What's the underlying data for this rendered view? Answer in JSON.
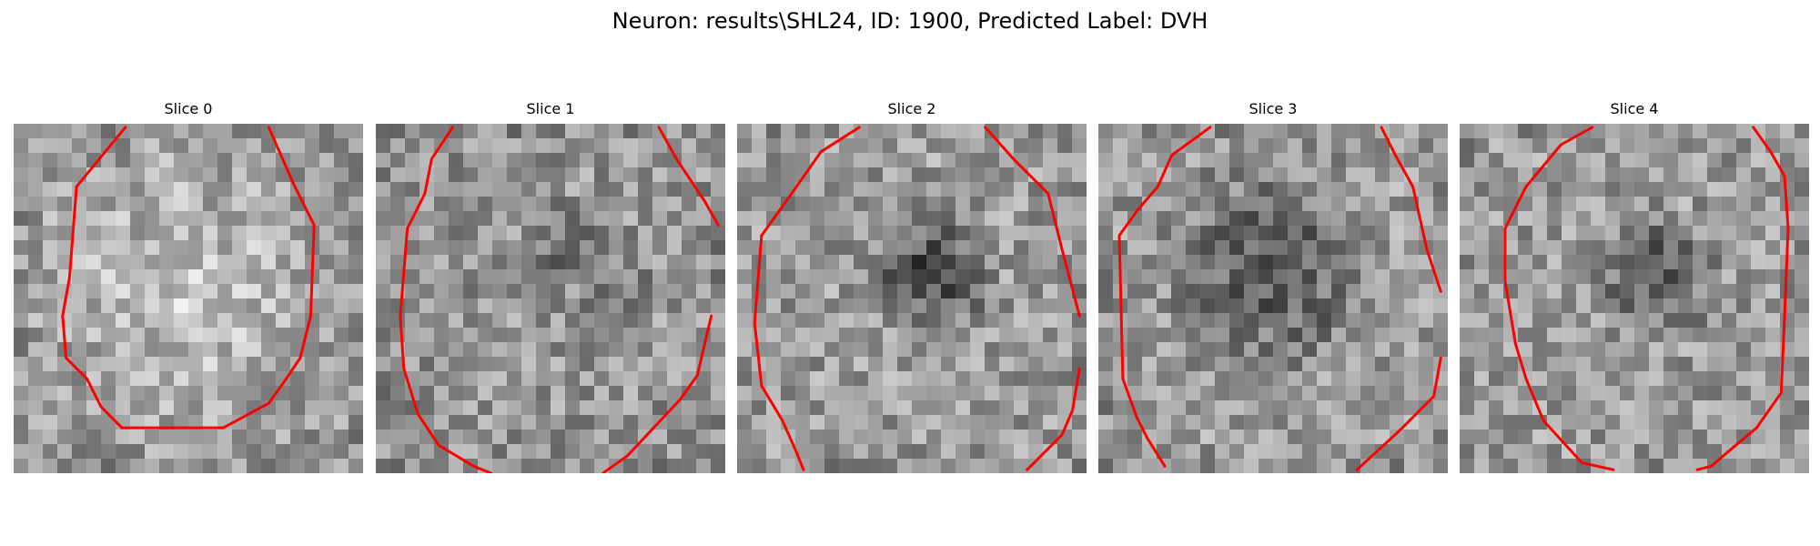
{
  "figure": {
    "title": "Neuron: results\\SHL24, ID: 1900, Predicted Label: DVH"
  },
  "panels": [
    {
      "title": "Slice 0",
      "pattern": "bright-center",
      "seed": 11,
      "contour_segments": [
        [
          [
            0.32,
            0.01
          ],
          [
            0.18,
            0.18
          ],
          [
            0.16,
            0.44
          ],
          [
            0.14,
            0.55
          ],
          [
            0.15,
            0.67
          ],
          [
            0.21,
            0.73
          ],
          [
            0.25,
            0.81
          ],
          [
            0.31,
            0.87
          ],
          [
            0.6,
            0.87
          ],
          [
            0.73,
            0.8
          ],
          [
            0.78,
            0.73
          ],
          [
            0.82,
            0.67
          ],
          [
            0.85,
            0.55
          ],
          [
            0.86,
            0.29
          ],
          [
            0.8,
            0.17
          ],
          [
            0.73,
            0.01
          ]
        ]
      ],
      "contour_color": "#ff0000"
    },
    {
      "title": "Slice 1",
      "pattern": "speckle",
      "seed": 23,
      "contour_segments": [
        [
          [
            0.22,
            0.01
          ],
          [
            0.16,
            0.1
          ],
          [
            0.14,
            0.2
          ],
          [
            0.09,
            0.3
          ],
          [
            0.07,
            0.55
          ],
          [
            0.08,
            0.7
          ],
          [
            0.12,
            0.83
          ],
          [
            0.18,
            0.92
          ],
          [
            0.28,
            0.98
          ],
          [
            0.33,
            1.0
          ]
        ],
        [
          [
            0.65,
            1.0
          ],
          [
            0.72,
            0.95
          ],
          [
            0.87,
            0.79
          ],
          [
            0.92,
            0.72
          ],
          [
            0.96,
            0.55
          ]
        ],
        [
          [
            0.81,
            0.01
          ],
          [
            0.86,
            0.1
          ],
          [
            0.94,
            0.22
          ],
          [
            0.98,
            0.29
          ]
        ]
      ],
      "contour_color": "#ff0000"
    },
    {
      "title": "Slice 2",
      "pattern": "dark-spot",
      "seed": 37,
      "contour_segments": [
        [
          [
            0.35,
            0.01
          ],
          [
            0.24,
            0.08
          ],
          [
            0.17,
            0.18
          ],
          [
            0.07,
            0.32
          ],
          [
            0.05,
            0.57
          ],
          [
            0.07,
            0.75
          ],
          [
            0.13,
            0.85
          ],
          [
            0.17,
            0.94
          ],
          [
            0.19,
            0.99
          ]
        ],
        [
          [
            0.71,
            0.01
          ],
          [
            0.79,
            0.1
          ],
          [
            0.89,
            0.2
          ],
          [
            0.93,
            0.36
          ],
          [
            0.98,
            0.55
          ]
        ],
        [
          [
            0.98,
            0.7
          ],
          [
            0.96,
            0.82
          ],
          [
            0.93,
            0.89
          ],
          [
            0.83,
            0.99
          ]
        ]
      ],
      "contour_color": "#ff0000"
    },
    {
      "title": "Slice 3",
      "pattern": "dark-center",
      "seed": 49,
      "contour_segments": [
        [
          [
            0.32,
            0.01
          ],
          [
            0.21,
            0.09
          ],
          [
            0.17,
            0.18
          ],
          [
            0.11,
            0.25
          ],
          [
            0.06,
            0.32
          ],
          [
            0.07,
            0.73
          ],
          [
            0.11,
            0.84
          ],
          [
            0.14,
            0.9
          ],
          [
            0.19,
            0.98
          ]
        ],
        [
          [
            0.81,
            0.01
          ],
          [
            0.85,
            0.09
          ],
          [
            0.9,
            0.18
          ],
          [
            0.94,
            0.36
          ],
          [
            0.98,
            0.48
          ]
        ],
        [
          [
            0.98,
            0.67
          ],
          [
            0.96,
            0.78
          ],
          [
            0.86,
            0.88
          ],
          [
            0.74,
            0.99
          ]
        ]
      ],
      "contour_color": "#ff0000"
    },
    {
      "title": "Slice 4",
      "pattern": "dark-spot-right",
      "seed": 61,
      "contour_segments": [
        [
          [
            0.38,
            0.01
          ],
          [
            0.29,
            0.06
          ],
          [
            0.19,
            0.18
          ],
          [
            0.13,
            0.3
          ],
          [
            0.13,
            0.45
          ],
          [
            0.16,
            0.63
          ],
          [
            0.19,
            0.73
          ],
          [
            0.24,
            0.85
          ],
          [
            0.35,
            0.97
          ],
          [
            0.44,
            0.99
          ]
        ],
        [
          [
            0.84,
            0.01
          ],
          [
            0.89,
            0.08
          ],
          [
            0.93,
            0.15
          ],
          [
            0.94,
            0.3
          ],
          [
            0.93,
            0.55
          ],
          [
            0.92,
            0.77
          ],
          [
            0.85,
            0.87
          ],
          [
            0.79,
            0.92
          ],
          [
            0.72,
            0.98
          ],
          [
            0.68,
            0.99
          ]
        ]
      ],
      "contour_color": "#ff0000"
    }
  ]
}
